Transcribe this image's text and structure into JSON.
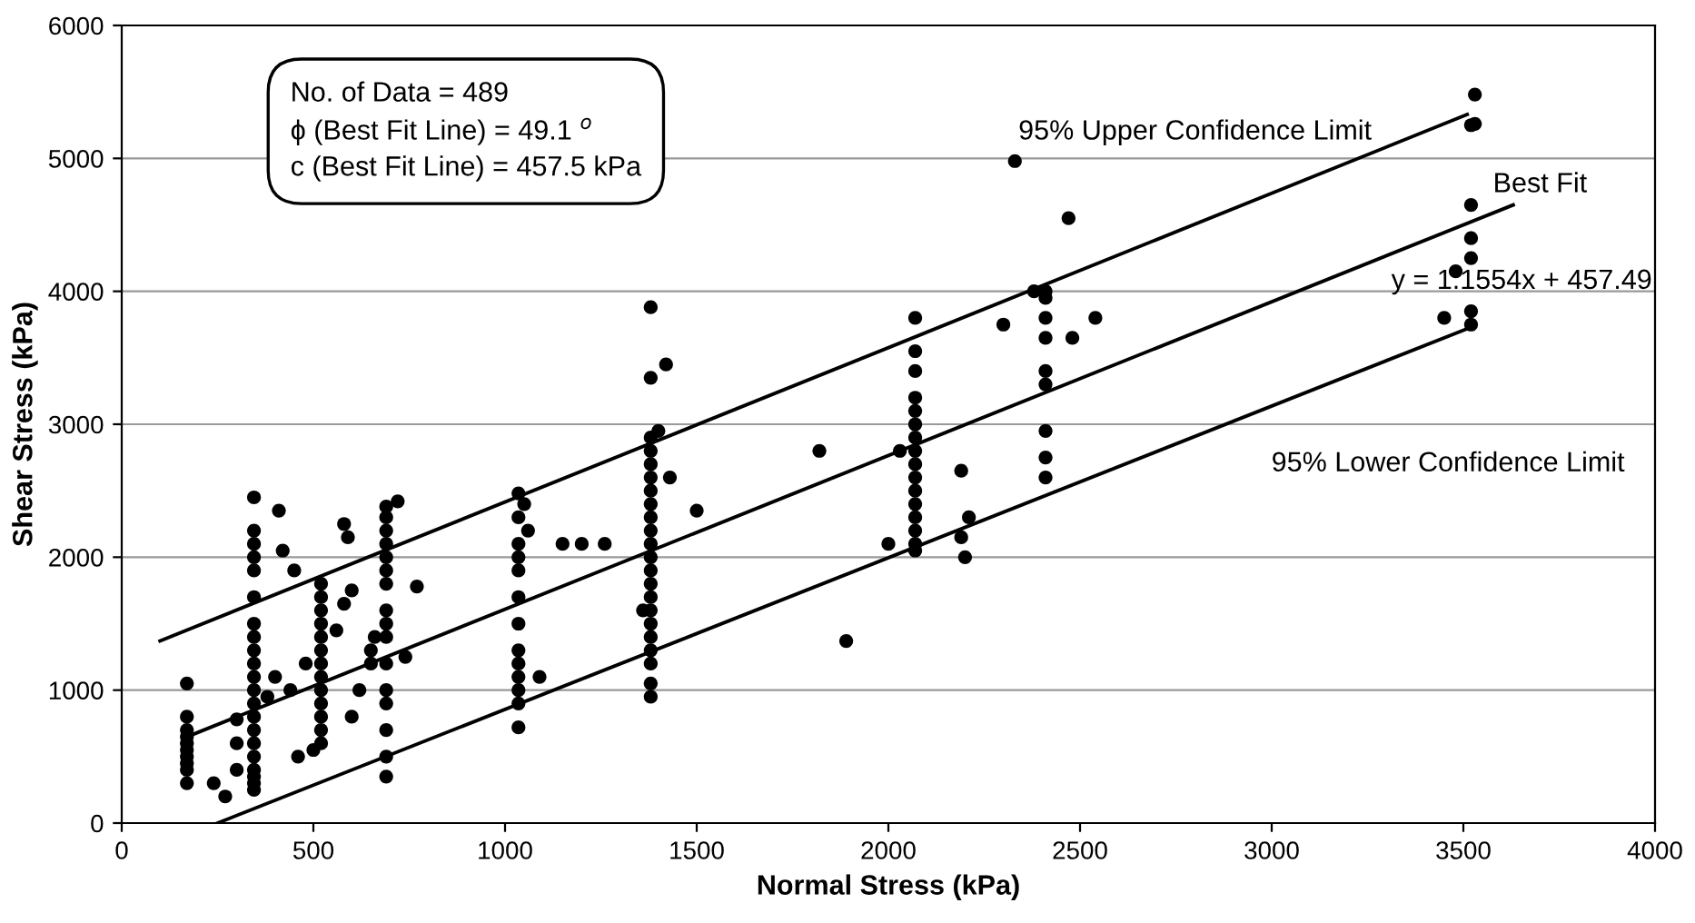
{
  "chart_data": {
    "type": "scatter",
    "xlabel": "Normal Stress (kPa)",
    "ylabel": "Shear Stress (kPa)",
    "xlim": [
      0,
      4000
    ],
    "xticks": [
      0,
      500,
      1000,
      1500,
      2000,
      2500,
      3000,
      3500,
      4000
    ],
    "ylim": [
      0,
      6000
    ],
    "yticks": [
      0,
      1000,
      2000,
      3000,
      4000,
      5000,
      6000
    ],
    "grid": "y",
    "legend": false,
    "series": [
      {
        "marker": "circle",
        "color": "#000000",
        "x": [
          170,
          170,
          170,
          170,
          170,
          170,
          170,
          170,
          170,
          170,
          345,
          345,
          345,
          345,
          345,
          345,
          345,
          345,
          345,
          345,
          345,
          345,
          345,
          345,
          345,
          345,
          345,
          345,
          345,
          345,
          345,
          240,
          270,
          300,
          300,
          300,
          380,
          400,
          410,
          420,
          440,
          450,
          480,
          460,
          520,
          520,
          520,
          520,
          520,
          520,
          520,
          520,
          520,
          520,
          520,
          520,
          520,
          560,
          580,
          590,
          580,
          600,
          620,
          650,
          660,
          650,
          600,
          500,
          690,
          690,
          690,
          690,
          690,
          690,
          690,
          690,
          690,
          690,
          690,
          690,
          690,
          690,
          690,
          690,
          720,
          770,
          740,
          1035,
          1035,
          1035,
          1035,
          1035,
          1035,
          1035,
          1035,
          1035,
          1035,
          1035,
          1035,
          1035,
          1050,
          1060,
          1090,
          1150,
          1200,
          1260,
          1380,
          1380,
          1380,
          1380,
          1380,
          1380,
          1380,
          1380,
          1380,
          1380,
          1380,
          1380,
          1380,
          1380,
          1380,
          1380,
          1380,
          1380,
          1380,
          1380,
          1380,
          1380,
          1420,
          1400,
          1430,
          1500,
          1360,
          2070,
          2070,
          2070,
          2070,
          2070,
          2070,
          2070,
          2070,
          2070,
          2070,
          2070,
          2070,
          2070,
          2070,
          2070,
          2070,
          1890,
          1820,
          2000,
          2030,
          2200,
          2190,
          2210,
          2190,
          2410,
          2410,
          2410,
          2410,
          2410,
          2410,
          2410,
          2410,
          2410,
          2330,
          2300,
          2380,
          2480,
          2470,
          2540,
          3520,
          3520,
          3520,
          3520,
          3520,
          3520,
          3530,
          3530,
          3450,
          3480
        ],
        "values": [
          300,
          400,
          450,
          500,
          550,
          600,
          650,
          700,
          800,
          1050,
          250,
          300,
          350,
          400,
          500,
          600,
          700,
          800,
          900,
          1000,
          1100,
          1200,
          1300,
          1400,
          1500,
          1700,
          1900,
          2000,
          2100,
          2200,
          2450,
          300,
          200,
          400,
          600,
          780,
          950,
          1100,
          2350,
          2050,
          1000,
          1900,
          1200,
          500,
          600,
          700,
          800,
          900,
          1000,
          1100,
          1200,
          1300,
          1400,
          1500,
          1600,
          1700,
          1800,
          1450,
          1650,
          2150,
          2250,
          800,
          1000,
          1200,
          1400,
          1300,
          1750,
          550,
          350,
          500,
          700,
          900,
          1000,
          1200,
          1400,
          1500,
          1600,
          1800,
          1900,
          2000,
          2100,
          2200,
          2300,
          2380,
          2420,
          1780,
          1250,
          720,
          900,
          1000,
          1100,
          1200,
          1300,
          1500,
          1700,
          1900,
          2000,
          2100,
          2300,
          2480,
          2400,
          2200,
          1100,
          2100,
          2100,
          2100,
          950,
          1050,
          1200,
          1300,
          1400,
          1500,
          1600,
          1700,
          1800,
          1900,
          2000,
          2100,
          2200,
          2300,
          2400,
          2500,
          2600,
          2700,
          2800,
          2900,
          3350,
          3880,
          3450,
          2950,
          2600,
          2350,
          1600,
          2050,
          2100,
          2200,
          2300,
          2400,
          2500,
          2600,
          2700,
          2800,
          2900,
          3000,
          3100,
          3200,
          3400,
          3550,
          3800,
          1370,
          2800,
          2100,
          2800,
          2000,
          2150,
          2300,
          2650,
          2600,
          2750,
          2950,
          3300,
          3400,
          3650,
          3800,
          3950,
          4000,
          4980,
          3750,
          4000,
          3650,
          4550,
          3800,
          3750,
          3850,
          4250,
          4400,
          4650,
          5250,
          5260,
          5480,
          3800,
          4150
        ]
      },
      {
        "type": "line",
        "color": "#000000",
        "x": [
          100,
          3510
        ],
        "values": [
          1370,
          5330
        ]
      },
      {
        "type": "line",
        "color": "#000000",
        "x": [
          180,
          3630
        ],
        "values": [
          660,
          4650
        ]
      },
      {
        "type": "line",
        "color": "#000000",
        "x": [
          250,
          3520
        ],
        "values": [
          0,
          3730
        ]
      }
    ],
    "annotations": [
      "No. of Data = 489\nϕ (Best Fit Line) = 49.1 $^{o}$\nc (Best Fit Line) = 457.5 kPa",
      "95% Upper Confidence Limit",
      "Best Fit",
      "y = 1.1554x + 457.49",
      "95% Lower Confidence Limit"
    ]
  }
}
